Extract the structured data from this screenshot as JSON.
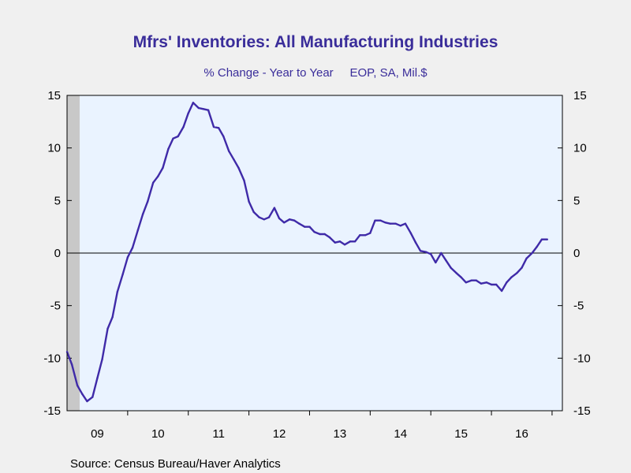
{
  "chart_data": {
    "type": "line",
    "title": "Mfrs' Inventories: All Manufacturing Industries",
    "subtitle": "% Change - Year to Year     EOP, SA, Mil.$",
    "source": "Source:  Census Bureau/Haver Analytics",
    "ylim": [
      -15,
      15
    ],
    "yticks": [
      15,
      10,
      5,
      0,
      -5,
      -10,
      -15
    ],
    "xlim": [
      2009.0,
      2017.17
    ],
    "xticks": [
      {
        "label": "09",
        "pos": 2009.5
      },
      {
        "label": "10",
        "pos": 2010.5
      },
      {
        "label": "11",
        "pos": 2011.5
      },
      {
        "label": "12",
        "pos": 2012.5
      },
      {
        "label": "13",
        "pos": 2013.5
      },
      {
        "label": "14",
        "pos": 2014.5
      },
      {
        "label": "15",
        "pos": 2015.5
      },
      {
        "label": "16",
        "pos": 2016.5
      }
    ],
    "recession_shading": [
      2009.0,
      2009.5
    ],
    "zero_line": true,
    "colors": {
      "line": "#3f2aa8",
      "title": "#3a2d9a",
      "plot_bg": "#eaf3ff",
      "recession": "#c8c8c8",
      "page_bg": "#f0f0f0"
    },
    "series": [
      {
        "points": [
          [
            2009.0,
            -9.4
          ],
          [
            2009.08,
            -10.6
          ],
          [
            2009.17,
            -12.6
          ],
          [
            2009.25,
            -13.4
          ],
          [
            2009.33,
            -14.1
          ],
          [
            2009.42,
            -13.7
          ],
          [
            2009.5,
            -11.9
          ],
          [
            2009.58,
            -10.1
          ],
          [
            2009.67,
            -7.2
          ],
          [
            2009.75,
            -6.1
          ],
          [
            2009.83,
            -3.7
          ],
          [
            2009.92,
            -2.0
          ],
          [
            2010.0,
            -0.4
          ],
          [
            2010.08,
            0.5
          ],
          [
            2010.17,
            2.2
          ],
          [
            2010.25,
            3.7
          ],
          [
            2010.33,
            4.9
          ],
          [
            2010.42,
            6.7
          ],
          [
            2010.5,
            7.3
          ],
          [
            2010.58,
            8.1
          ],
          [
            2010.67,
            9.9
          ],
          [
            2010.75,
            10.9
          ],
          [
            2010.83,
            11.1
          ],
          [
            2010.92,
            12.0
          ],
          [
            2011.0,
            13.3
          ],
          [
            2011.08,
            14.3
          ],
          [
            2011.17,
            13.8
          ],
          [
            2011.25,
            13.7
          ],
          [
            2011.33,
            13.6
          ],
          [
            2011.42,
            12.0
          ],
          [
            2011.5,
            11.9
          ],
          [
            2011.58,
            11.1
          ],
          [
            2011.67,
            9.7
          ],
          [
            2011.75,
            8.9
          ],
          [
            2011.83,
            8.1
          ],
          [
            2011.92,
            6.9
          ],
          [
            2012.0,
            4.9
          ],
          [
            2012.08,
            3.9
          ],
          [
            2012.17,
            3.4
          ],
          [
            2012.25,
            3.2
          ],
          [
            2012.33,
            3.4
          ],
          [
            2012.42,
            4.3
          ],
          [
            2012.5,
            3.3
          ],
          [
            2012.58,
            2.9
          ],
          [
            2012.67,
            3.2
          ],
          [
            2012.75,
            3.1
          ],
          [
            2012.83,
            2.8
          ],
          [
            2012.92,
            2.5
          ],
          [
            2013.0,
            2.5
          ],
          [
            2013.08,
            2.0
          ],
          [
            2013.17,
            1.8
          ],
          [
            2013.25,
            1.8
          ],
          [
            2013.33,
            1.5
          ],
          [
            2013.42,
            1.0
          ],
          [
            2013.5,
            1.1
          ],
          [
            2013.58,
            0.8
          ],
          [
            2013.67,
            1.1
          ],
          [
            2013.75,
            1.1
          ],
          [
            2013.83,
            1.7
          ],
          [
            2013.92,
            1.7
          ],
          [
            2014.0,
            1.9
          ],
          [
            2014.08,
            3.1
          ],
          [
            2014.17,
            3.1
          ],
          [
            2014.25,
            2.9
          ],
          [
            2014.33,
            2.8
          ],
          [
            2014.42,
            2.8
          ],
          [
            2014.5,
            2.6
          ],
          [
            2014.58,
            2.8
          ],
          [
            2014.67,
            1.9
          ],
          [
            2014.75,
            1.0
          ],
          [
            2014.83,
            0.2
          ],
          [
            2014.92,
            0.1
          ],
          [
            2015.0,
            -0.1
          ],
          [
            2015.08,
            -0.9
          ],
          [
            2015.17,
            0.0
          ],
          [
            2015.25,
            -0.7
          ],
          [
            2015.33,
            -1.4
          ],
          [
            2015.42,
            -1.9
          ],
          [
            2015.5,
            -2.3
          ],
          [
            2015.58,
            -2.8
          ],
          [
            2015.67,
            -2.6
          ],
          [
            2015.75,
            -2.6
          ],
          [
            2015.83,
            -2.9
          ],
          [
            2015.92,
            -2.8
          ],
          [
            2016.0,
            -3.0
          ],
          [
            2016.08,
            -3.0
          ],
          [
            2016.17,
            -3.6
          ],
          [
            2016.25,
            -2.8
          ],
          [
            2016.33,
            -2.3
          ],
          [
            2016.42,
            -1.9
          ],
          [
            2016.5,
            -1.4
          ],
          [
            2016.58,
            -0.5
          ],
          [
            2016.67,
            0.0
          ],
          [
            2016.75,
            0.6
          ],
          [
            2016.83,
            1.3
          ],
          [
            2016.92,
            1.3
          ]
        ]
      }
    ]
  }
}
